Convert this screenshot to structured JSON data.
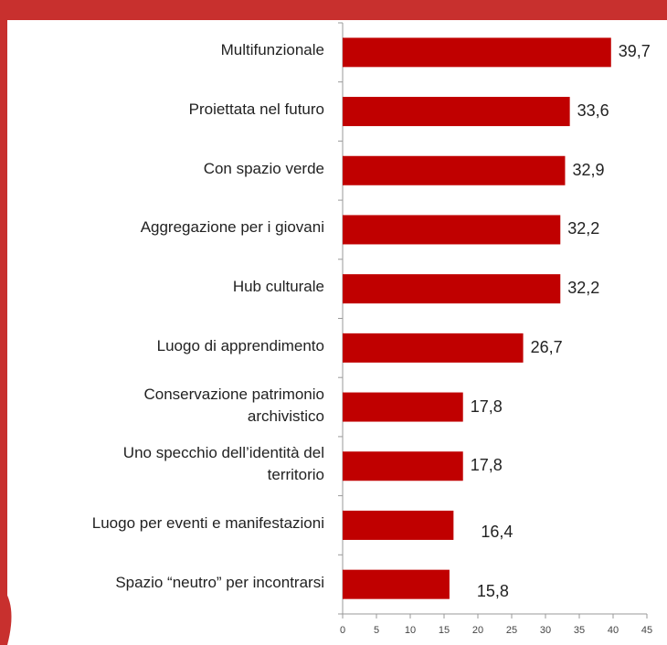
{
  "chart_data": {
    "type": "barh",
    "categories": [
      "Multifunzionale",
      "Proiettata nel futuro",
      "Con spazio verde",
      "Aggregazione per i giovani",
      "Hub culturale",
      "Luogo di apprendimento",
      "Conservazione patrimonio\narchivistico",
      "Uno specchio dell’identità del\nterritorio",
      "Luogo per eventi e manifestazioni",
      "Spazio “neutro” per incontrarsi"
    ],
    "values": [
      39.7,
      33.6,
      32.9,
      32.2,
      32.2,
      26.7,
      17.8,
      17.8,
      16.4,
      15.8
    ],
    "value_labels": [
      "39,7",
      "33,6",
      "32,9",
      "32,2",
      "32,2",
      "26,7",
      "17,8",
      "17,8",
      "16,4",
      "15,8"
    ],
    "color": "#c00000",
    "xlim": [
      0,
      45
    ],
    "xticks": [
      0,
      5,
      10,
      15,
      20,
      25,
      30,
      35,
      40,
      45
    ],
    "grid": false
  }
}
